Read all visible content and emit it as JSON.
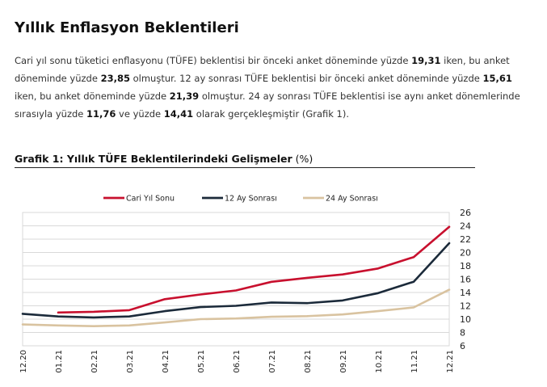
{
  "page": {
    "title": "Yıllık Enflasyon Beklentileri",
    "paragraph": [
      {
        "t": "Cari yıl sonu tüketici enflasyonu (TÜFE) beklentisi bir önceki anket döneminde yüzde "
      },
      {
        "t": "19,31",
        "b": true
      },
      {
        "t": " iken, bu anket döneminde yüzde "
      },
      {
        "t": "23,85",
        "b": true
      },
      {
        "t": " olmuştur. 12 ay sonrası TÜFE beklentisi bir önceki anket döneminde yüzde "
      },
      {
        "t": "15,61",
        "b": true
      },
      {
        "t": " iken, bu anket döneminde yüzde "
      },
      {
        "t": "21,39",
        "b": true
      },
      {
        "t": " olmuştur. 24 ay sonrası TÜFE beklentisi ise aynı anket dönemlerinde sırasıyla yüzde "
      },
      {
        "t": "11,76",
        "b": true
      },
      {
        "t": " ve yüzde "
      },
      {
        "t": "14,41",
        "b": true
      },
      {
        "t": " olarak gerçekleşmiştir (Grafik 1)."
      }
    ],
    "chart_heading_bold": "Grafik 1: Yıllık TÜFE Beklentilerindeki Gelişmeler",
    "chart_heading_unit": " (%)"
  },
  "chart_data": {
    "type": "line",
    "categories": [
      "12.20",
      "01.21",
      "02.21",
      "03.21",
      "04.21",
      "05.21",
      "06.21",
      "07.21",
      "08.21",
      "09.21",
      "10.21",
      "11.21",
      "12.21"
    ],
    "ylim": [
      6,
      26
    ],
    "yticks": [
      6,
      8,
      10,
      12,
      14,
      16,
      18,
      20,
      22,
      24,
      26
    ],
    "grid": true,
    "legend_position": "top",
    "series": [
      {
        "name": "Cari Yıl Sonu",
        "color": "#c8102e",
        "values": [
          null,
          11.0,
          11.1,
          11.35,
          13.0,
          13.7,
          14.3,
          15.6,
          16.2,
          16.7,
          17.6,
          19.31,
          23.85
        ]
      },
      {
        "name": "12 Ay Sonrası",
        "color": "#1b2a3a",
        "values": [
          10.8,
          10.4,
          10.25,
          10.4,
          11.2,
          11.8,
          12.0,
          12.5,
          12.4,
          12.8,
          13.9,
          15.61,
          21.39
        ]
      },
      {
        "name": "24 Ay Sonrası",
        "color": "#d9c3a0",
        "values": [
          9.2,
          9.05,
          8.95,
          9.05,
          9.5,
          10.0,
          10.1,
          10.35,
          10.45,
          10.7,
          11.2,
          11.76,
          14.41
        ]
      }
    ]
  }
}
